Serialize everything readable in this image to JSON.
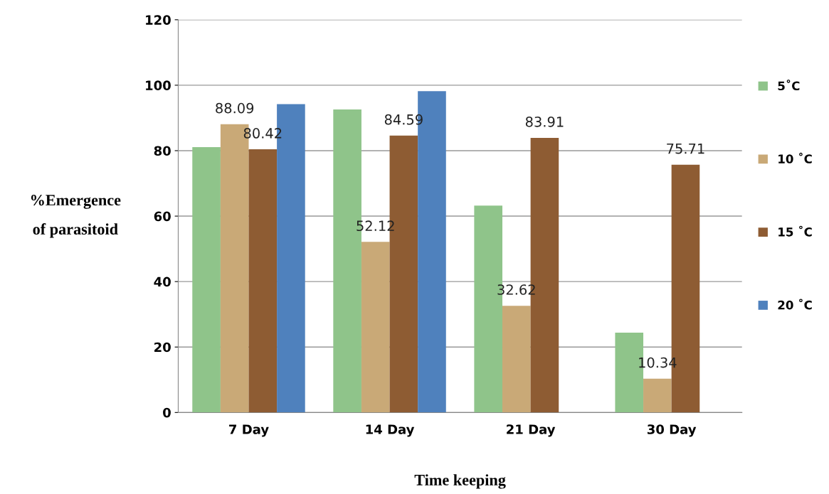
{
  "chart_data": {
    "type": "bar",
    "xlabel": "Time keeping",
    "ylabel": "%Emergence\nof parasitoid",
    "categories": [
      "7 Day",
      "14 Day",
      "21 Day",
      "30 Day"
    ],
    "series": [
      {
        "name": "5˚C",
        "color": "#8fc48a",
        "values": [
          81.1,
          92.6,
          63.2,
          24.4
        ]
      },
      {
        "name": "10 ˚C",
        "color": "#c9a977",
        "values": [
          88.09,
          52.12,
          32.62,
          10.34
        ],
        "value_labels": [
          "88.09",
          "52.12",
          "32.62",
          "10.34"
        ]
      },
      {
        "name": "15 ˚C",
        "color": "#8e5c33",
        "values": [
          80.42,
          84.59,
          83.91,
          75.71
        ],
        "value_labels": [
          "80.42",
          "84.59",
          "83.91",
          "75.71"
        ]
      },
      {
        "name": "20 ˚C",
        "color": "#4f81bd",
        "values": [
          94.2,
          98.2,
          null,
          null
        ]
      }
    ],
    "ylim": [
      0,
      120
    ],
    "yticks": [
      0,
      20,
      40,
      60,
      80,
      100,
      120
    ],
    "grid": "y",
    "legend": "right"
  }
}
